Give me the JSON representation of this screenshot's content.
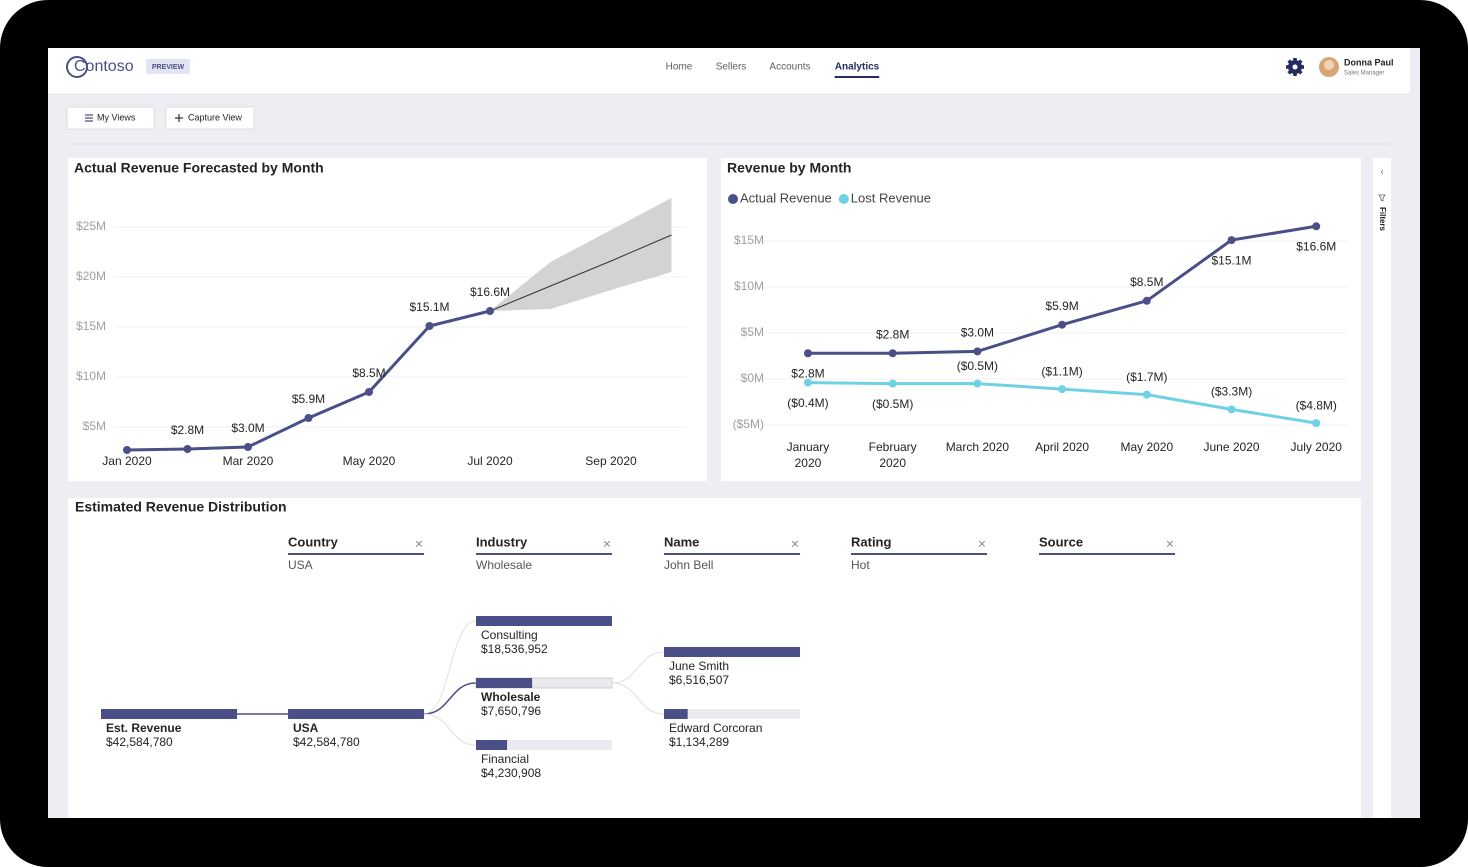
{
  "header": {
    "logo": "Contoso",
    "badge": "PREVIEW",
    "nav": [
      "Home",
      "Sellers",
      "Accounts",
      "Analytics"
    ],
    "active_nav": 3,
    "user": {
      "name": "Donna Paul",
      "role": "Sales Manager"
    }
  },
  "toolbar": {
    "buttons": [
      "My Views",
      "Capture View"
    ]
  },
  "filters_pane": {
    "label": "Filters"
  },
  "chart_data": [
    {
      "type": "line",
      "title": "Actual Revenue Forecasted by Month",
      "x": [
        "2020-01",
        "2020-02",
        "2020-03",
        "2020-04",
        "2020-05",
        "2020-06",
        "2020-07"
      ],
      "values": [
        2.7,
        2.8,
        3.0,
        5.9,
        8.5,
        15.1,
        16.6
      ],
      "value_labels": [
        null,
        "$2.8M",
        "$3.0M",
        "$5.9M",
        "$8.5M",
        "$15.1M",
        "$16.6M"
      ],
      "color": "#4b4f87",
      "forecast": {
        "x": [
          "2020-07",
          "2020-08",
          "2020-09",
          "2020-10"
        ],
        "values": [
          16.6,
          19.1,
          21.6,
          24.2
        ],
        "upper": [
          16.6,
          21.5,
          24.7,
          27.9
        ],
        "lower": [
          16.6,
          16.8,
          18.7,
          20.5
        ],
        "color": "#d3d3d3"
      },
      "xlim": [
        "2020-01",
        "2020-10"
      ],
      "xticks": [
        {
          "value": "2020-01",
          "label": "Jan 2020"
        },
        {
          "value": "2020-03",
          "label": "Mar 2020"
        },
        {
          "value": "2020-05",
          "label": "May 2020"
        },
        {
          "value": "2020-07",
          "label": "Jul 2020"
        },
        {
          "value": "2020-09",
          "label": "Sep 2020"
        }
      ],
      "ylim": [
        2,
        28
      ],
      "yticks": [
        {
          "value": 5,
          "label": "$5M"
        },
        {
          "value": 10,
          "label": "$10M"
        },
        {
          "value": 15,
          "label": "$15M"
        },
        {
          "value": 20,
          "label": "$20M"
        },
        {
          "value": 25,
          "label": "$25M"
        }
      ],
      "grid": true
    },
    {
      "type": "line",
      "title": "Revenue by Month",
      "categories": [
        "January 2020",
        "February 2020",
        "March 2020",
        "April 2020",
        "May 2020",
        "June 2020",
        "July 2020"
      ],
      "series": [
        {
          "name": "Actual Revenue",
          "color": "#4b4f87",
          "values": [
            2.8,
            2.8,
            3.0,
            5.9,
            8.5,
            15.1,
            16.6
          ],
          "value_labels": [
            "$2.8M",
            "$2.8M",
            "$3.0M",
            "$5.9M",
            "$8.5M",
            "$15.1M",
            "$16.6M"
          ]
        },
        {
          "name": "Lost Revenue",
          "color": "#6fd2e4",
          "values": [
            -0.4,
            -0.5,
            -0.5,
            -1.1,
            -1.7,
            -3.3,
            -4.8
          ],
          "value_labels": [
            "($0.4M)",
            "($0.5M)",
            "($0.5M)",
            "($1.1M)",
            "($1.7M)",
            "($3.3M)",
            "($4.8M)"
          ]
        }
      ],
      "ylim": [
        -6,
        17
      ],
      "yticks": [
        {
          "value": -5,
          "label": "($5M)"
        },
        {
          "value": 0,
          "label": "$0M"
        },
        {
          "value": 5,
          "label": "$5M"
        },
        {
          "value": 10,
          "label": "$10M"
        },
        {
          "value": 15,
          "label": "$15M"
        }
      ],
      "grid": true,
      "legend": "top-left"
    }
  ],
  "decomposition_tree": {
    "title": "Estimated Revenue Distribution",
    "levels": [
      {
        "field": "Country",
        "selected": "USA"
      },
      {
        "field": "Industry",
        "selected": "Wholesale"
      },
      {
        "field": "Name",
        "selected": "John Bell"
      },
      {
        "field": "Rating",
        "selected": "Hot"
      },
      {
        "field": "Source"
      }
    ],
    "columns": [
      [
        {
          "label": "Est. Revenue",
          "value": 42584780,
          "value_label": "$42,584,780",
          "selected": true
        }
      ],
      [
        {
          "label": "USA",
          "value": 42584780,
          "value_label": "$42,584,780",
          "selected": true
        }
      ],
      [
        {
          "label": "Consulting",
          "value": 18536952,
          "value_label": "$18,536,952"
        },
        {
          "label": "Wholesale",
          "value": 7650796,
          "value_label": "$7,650,796",
          "selected": true
        },
        {
          "label": "Financial",
          "value": 4230908,
          "value_label": "$4,230,908"
        }
      ],
      [
        {
          "label": "June Smith",
          "value": 6516507,
          "value_label": "$6,516,507"
        },
        {
          "label": "Edward Corcoran",
          "value": 1134289,
          "value_label": "$1,134,289"
        }
      ]
    ]
  }
}
